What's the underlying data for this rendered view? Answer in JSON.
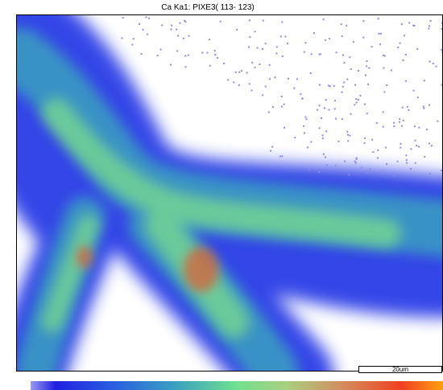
{
  "title": "Ca Ka1: PIXE3( 113- 123)",
  "scale_bar": "20um"
}
